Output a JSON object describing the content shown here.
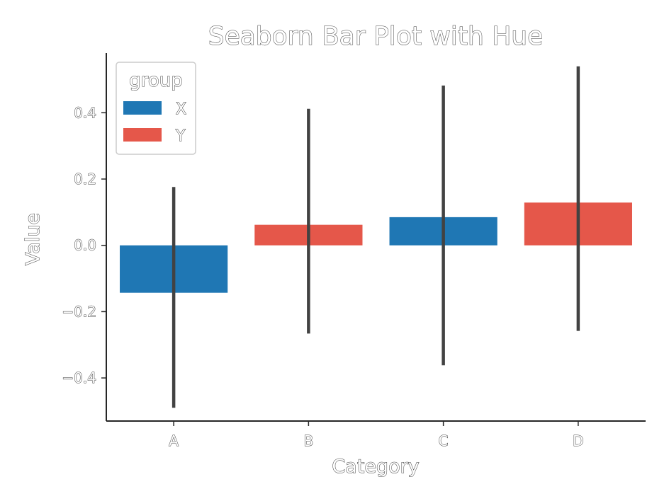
{
  "chart_data": {
    "type": "bar",
    "title": "Seaborn Bar Plot with Hue",
    "xlabel": "Category",
    "ylabel": "Value",
    "categories": [
      "A",
      "B",
      "C",
      "D"
    ],
    "ylim": [
      -0.53,
      0.58
    ],
    "yticks": [
      -0.4,
      -0.2,
      0.0,
      0.2,
      0.4
    ],
    "ytick_labels": [
      "−0.4",
      "−0.2",
      "0.0",
      "0.2",
      "0.4"
    ],
    "grid": false,
    "legend": {
      "title": "group",
      "placement": "top-left"
    },
    "series": [
      {
        "name": "X",
        "color": "#1f77b4"
      },
      {
        "name": "Y",
        "color": "#e5574a"
      }
    ],
    "bars": [
      {
        "category": "A",
        "group": "X",
        "value": -0.143,
        "ci": [
          -0.49,
          0.176
        ]
      },
      {
        "category": "B",
        "group": "Y",
        "value": 0.062,
        "ci": [
          -0.266,
          0.412
        ]
      },
      {
        "category": "C",
        "group": "X",
        "value": 0.085,
        "ci": [
          -0.362,
          0.482
        ]
      },
      {
        "category": "D",
        "group": "Y",
        "value": 0.129,
        "ci": [
          -0.258,
          0.54
        ]
      }
    ]
  }
}
